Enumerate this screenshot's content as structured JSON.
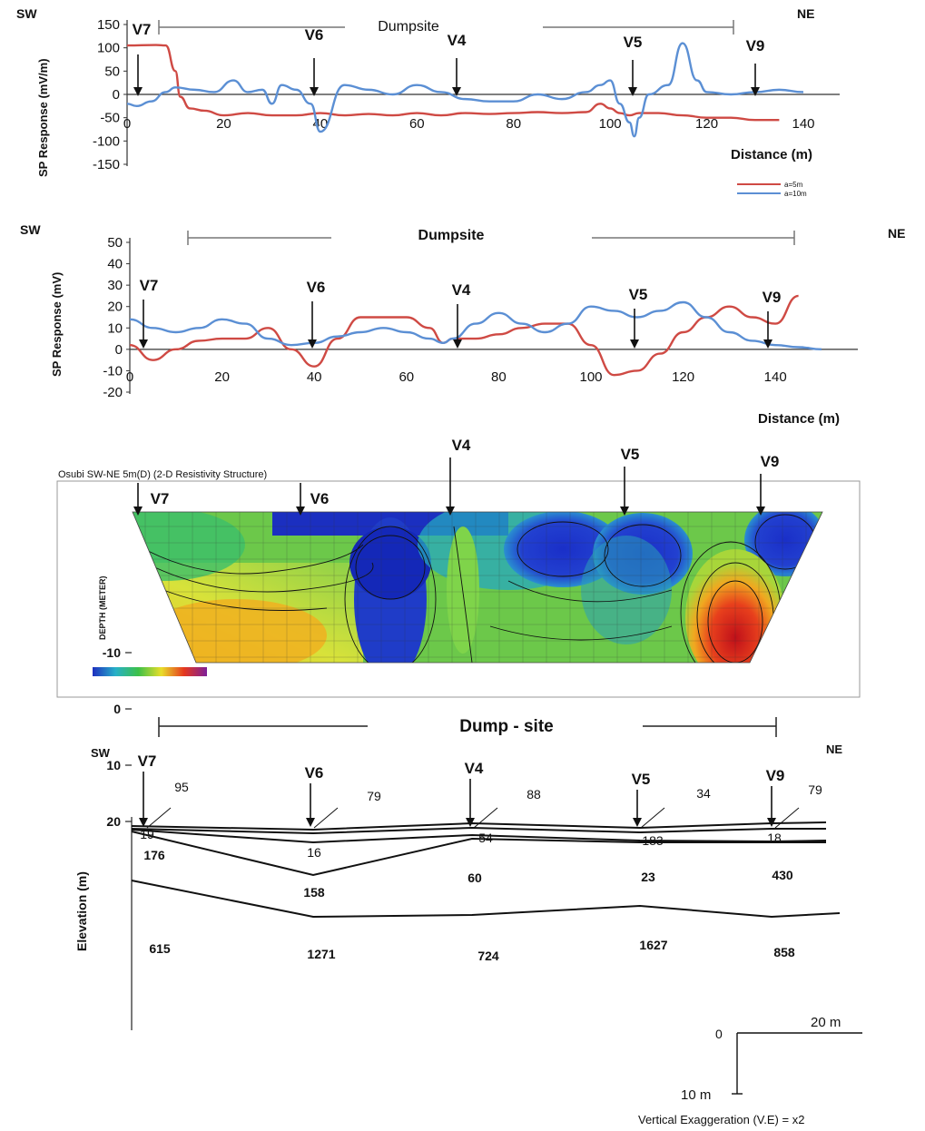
{
  "colors": {
    "red_series": "#cf4a44",
    "blue_series": "#5b8fd4",
    "axis": "#333333"
  },
  "panel1": {
    "sw": "SW",
    "ne": "NE",
    "dumpsite": "Dumpsite",
    "ylabel": "SP Response (mV/m)",
    "xlabel": "Distance (m)",
    "xticks": [
      "0",
      "20",
      "40",
      "60",
      "80",
      "100",
      "120",
      "140"
    ],
    "yticks": [
      "150",
      "100",
      "50",
      "0",
      "-50",
      "-100",
      "-150"
    ],
    "legend": [
      "a=5m",
      "a=10m"
    ],
    "stations": [
      "V7",
      "V6",
      "V4",
      "V5",
      "V9"
    ]
  },
  "panel2": {
    "sw": "SW",
    "ne": "NE",
    "dumpsite": "Dumpsite",
    "ylabel": "SP Response (mV)",
    "xlabel": "Distance (m)",
    "xticks": [
      "0",
      "20",
      "40",
      "60",
      "80",
      "100",
      "120",
      "140"
    ],
    "yticks": [
      "50",
      "40",
      "30",
      "20",
      "10",
      "0",
      "-10",
      "-20"
    ],
    "stations": [
      "V7",
      "V6",
      "V4",
      "V5",
      "V9"
    ]
  },
  "panel3": {
    "title": "Osubi SW-NE 5m(D) (2-D Resistivity Structure)",
    "ylabel": "DEPTH (METER)",
    "stations": [
      "V7",
      "V6",
      "V4",
      "V5",
      "V9"
    ]
  },
  "panel4": {
    "dumpsite": "Dump - site",
    "sw": "SW",
    "ne": "NE",
    "ylabel": "Elevation (m)",
    "yticks": [
      "20",
      "10",
      "0",
      "-10"
    ],
    "stations": [
      "V7",
      "V6",
      "V4",
      "V5",
      "V9"
    ],
    "topsoil_values": [
      "95",
      "79",
      "88",
      "34",
      "79"
    ],
    "layer2_values": [
      "19",
      "16",
      "54",
      "183",
      "18"
    ],
    "layer3_values": [
      "176",
      "158",
      "60",
      "23",
      "430"
    ],
    "layer4_values": [
      "615",
      "1271",
      "724",
      "1627",
      "858"
    ],
    "scale_labels": [
      "0",
      "20 m",
      "10 m"
    ],
    "ve_note": "Vertical Exaggeration (V.E) = x2"
  },
  "chart_data": [
    {
      "type": "line",
      "title": "",
      "xlabel": "Distance (m)",
      "ylabel": "SP Response (mV/m)",
      "xlim": [
        0,
        140
      ],
      "ylim": [
        -150,
        150
      ],
      "series": [
        {
          "name": "a=5m",
          "x": [
            0,
            6,
            8,
            10,
            11,
            13,
            16,
            20,
            25,
            30,
            35,
            40,
            45,
            50,
            55,
            60,
            65,
            70,
            75,
            80,
            85,
            90,
            95,
            98,
            100,
            102,
            104,
            106,
            110,
            115,
            120,
            125,
            130,
            135
          ],
          "y": [
            105,
            106,
            105,
            50,
            -5,
            -30,
            -35,
            -45,
            -40,
            -45,
            -45,
            -40,
            -45,
            -42,
            -45,
            -40,
            -45,
            -40,
            -42,
            -40,
            -38,
            -40,
            -38,
            -20,
            -30,
            -40,
            -45,
            -40,
            -40,
            -45,
            -50,
            -50,
            -55,
            -55
          ]
        },
        {
          "name": "a=10m",
          "x": [
            0,
            2,
            5,
            8,
            10,
            14,
            18,
            22,
            25,
            28,
            30,
            32,
            35,
            38,
            40,
            45,
            50,
            55,
            60,
            65,
            70,
            75,
            80,
            85,
            90,
            95,
            98,
            100,
            102,
            104,
            105,
            106,
            108,
            112,
            115,
            118,
            120,
            125,
            130,
            135,
            140
          ],
          "y": [
            -20,
            -25,
            -15,
            5,
            15,
            10,
            5,
            30,
            5,
            10,
            -20,
            20,
            10,
            -20,
            -80,
            20,
            10,
            0,
            20,
            5,
            -10,
            -15,
            -15,
            0,
            -10,
            5,
            20,
            30,
            -20,
            -60,
            -90,
            -50,
            0,
            20,
            110,
            30,
            5,
            0,
            5,
            10,
            5
          ]
        }
      ]
    },
    {
      "type": "line",
      "title": "",
      "xlabel": "Distance (m)",
      "ylabel": "SP Response (mV)",
      "xlim": [
        0,
        150
      ],
      "ylim": [
        -20,
        50
      ],
      "series": [
        {
          "name": "",
          "x": [
            0,
            5,
            10,
            15,
            20,
            25,
            30,
            35,
            40,
            45,
            50,
            55,
            60,
            65,
            68,
            70,
            75,
            80,
            85,
            90,
            95,
            100,
            105,
            110,
            115,
            120,
            125,
            130,
            135,
            140,
            145
          ],
          "y": [
            2,
            -5,
            0,
            4,
            5,
            5,
            10,
            0,
            -8,
            5,
            15,
            15,
            15,
            10,
            3,
            5,
            5,
            7,
            10,
            12,
            12,
            2,
            -12,
            -10,
            -2,
            8,
            15,
            20,
            15,
            12,
            25
          ]
        },
        {
          "name": "",
          "x": [
            0,
            5,
            10,
            15,
            20,
            25,
            30,
            35,
            40,
            45,
            50,
            55,
            60,
            65,
            68,
            70,
            75,
            80,
            85,
            90,
            95,
            100,
            105,
            110,
            115,
            120,
            125,
            130,
            135,
            140,
            145,
            150
          ],
          "y": [
            14,
            10,
            8,
            10,
            14,
            12,
            5,
            2,
            3,
            6,
            8,
            10,
            8,
            5,
            3,
            5,
            12,
            17,
            12,
            8,
            12,
            20,
            18,
            15,
            18,
            22,
            15,
            8,
            4,
            2,
            1,
            0
          ]
        }
      ]
    }
  ]
}
